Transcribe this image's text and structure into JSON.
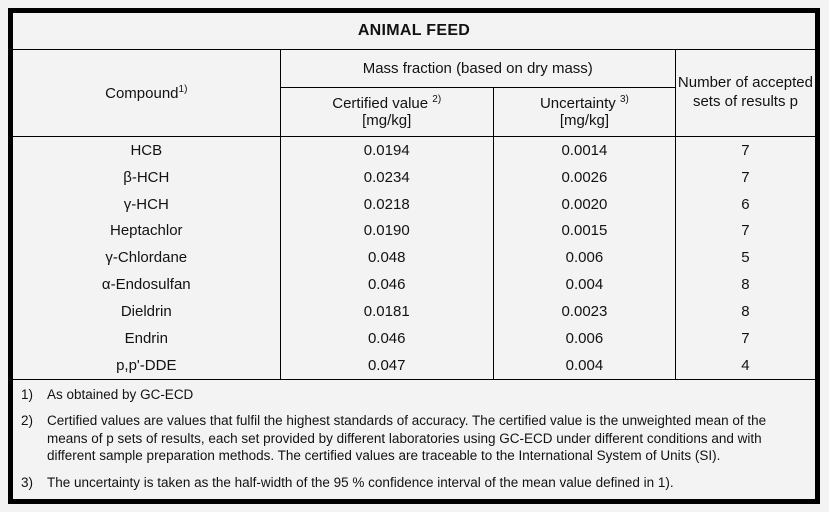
{
  "title": "ANIMAL FEED",
  "colors": {
    "background": "#f3f3f3",
    "border": "#000000",
    "text": "#121212"
  },
  "headers": {
    "compound_label": "Compound",
    "compound_sup": "1)",
    "mass_fraction_label": "Mass fraction (based on dry mass)",
    "certified_value_label": "Certified value",
    "certified_value_sup": "2)",
    "certified_value_unit": "[mg/kg]",
    "uncertainty_label": "Uncertainty",
    "uncertainty_sup": "3)",
    "uncertainty_unit": "[mg/kg]",
    "accepted_sets_label": "Number of accepted sets of results p"
  },
  "table": {
    "rows": [
      {
        "compound": "HCB",
        "certified_value": "0.0194",
        "uncertainty": "0.0014",
        "accepted_sets": "7"
      },
      {
        "compound": "β-HCH",
        "certified_value": "0.0234",
        "uncertainty": "0.0026",
        "accepted_sets": "7"
      },
      {
        "compound": "γ-HCH",
        "certified_value": "0.0218",
        "uncertainty": "0.0020",
        "accepted_sets": "6"
      },
      {
        "compound": "Heptachlor",
        "certified_value": "0.0190",
        "uncertainty": "0.0015",
        "accepted_sets": "7"
      },
      {
        "compound": "γ-Chlordane",
        "certified_value": "0.048",
        "uncertainty": "0.006",
        "accepted_sets": "5"
      },
      {
        "compound": "α-Endosulfan",
        "certified_value": "0.046",
        "uncertainty": "0.004",
        "accepted_sets": "8"
      },
      {
        "compound": "Dieldrin",
        "certified_value": "0.0181",
        "uncertainty": "0.0023",
        "accepted_sets": "8"
      },
      {
        "compound": "Endrin",
        "certified_value": "0.046",
        "uncertainty": "0.006",
        "accepted_sets": "7"
      },
      {
        "compound": "p,p'-DDE",
        "certified_value": "0.047",
        "uncertainty": "0.004",
        "accepted_sets": "4"
      }
    ]
  },
  "footnotes": [
    {
      "marker": "1)",
      "text": "As obtained by GC-ECD"
    },
    {
      "marker": "2)",
      "text": "Certified values are values that fulfil the highest standards of accuracy. The certified value is the unweighted mean of the means of p sets of results, each set provided by different laboratories using GC-ECD under different conditions and with different sample preparation methods. The certified values are traceable to the International System of Units (SI)."
    },
    {
      "marker": "3)",
      "text": "The uncertainty is taken as the half-width of the 95 % confidence interval of the mean value defined in 1)."
    }
  ]
}
